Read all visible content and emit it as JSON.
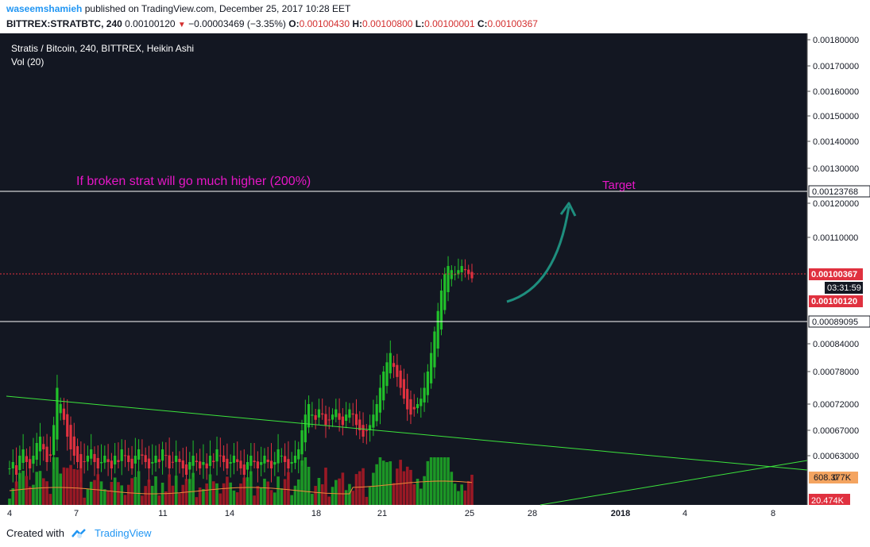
{
  "header": {
    "author": "waseemshamieh",
    "published_text": "published on TradingView.com, December 25, 2017 10:28 EET",
    "symbol": "BITTREX:STRATBTC, 240",
    "last_price": "0.00100120",
    "change": "−0.00003469 (−3.35%)",
    "o_label": "O:",
    "o_value": "0.00100430",
    "h_label": "H:",
    "h_value": "0.00100800",
    "l_label": "L:",
    "l_value": "0.00100001",
    "c_label": "C:",
    "c_value": "0.00100367"
  },
  "legend": {
    "title": "Stratis / Bitcoin, 240, BITTREX, Heikin Ashi",
    "volume": "Vol (20)"
  },
  "footer": {
    "created_with": "Created with",
    "brand": "TradingView"
  },
  "colors": {
    "background": "#131722",
    "up": "#21c02a",
    "down": "#e0313f",
    "annotation": "#e616c6",
    "arrow": "#1e8e7e",
    "trendline": "#3ce43c",
    "vol_ma": "#f08a3a"
  },
  "chart_data": {
    "type": "candlestick",
    "style": "Heikin Ashi",
    "symbol": "STRATBTC",
    "exchange": "BITTREX",
    "interval": "240",
    "ylim": [
      0.00058,
      0.00182
    ],
    "y_ticks": [
      "0.00180000",
      "0.00170000",
      "0.00160000",
      "0.00150000",
      "0.00140000",
      "0.00130000",
      "0.00120000",
      "0.00110000",
      "0.00084000",
      "0.00078000",
      "0.00072000",
      "0.00067000",
      "0.00063000"
    ],
    "x_ticks": [
      "4",
      "7",
      "11",
      "14",
      "18",
      "21",
      "25",
      "28",
      "2018",
      "4",
      "8"
    ],
    "current_price": "0.00100367",
    "countdown": "03:31:59",
    "bid_price": "0.00100120",
    "volume_label": "608.377K",
    "volume_low_label": "20.474K",
    "volume_axis_tick": "0",
    "horizontal_lines": [
      {
        "price": "0.00123768"
      },
      {
        "price": "0.00089095"
      }
    ],
    "annotations": [
      {
        "text": "If broken strat will go much higher (200%)"
      },
      {
        "text": "Target"
      }
    ],
    "candles_close": [
      0.00061,
      0.00062,
      0.0006,
      0.00063,
      0.00064,
      0.00062,
      0.00061,
      0.00063,
      0.00065,
      0.00066,
      0.00064,
      0.00062,
      0.00063,
      0.00068,
      0.00075,
      0.00072,
      0.00069,
      0.00066,
      0.00064,
      0.00063,
      0.00062,
      0.00061,
      0.00062,
      0.00063,
      0.00064,
      0.00062,
      0.00061,
      0.00062,
      0.00063,
      0.00062,
      0.00061,
      0.00063,
      0.00062,
      0.00064,
      0.00063,
      0.00062,
      0.00061,
      0.00063,
      0.00064,
      0.00063,
      0.00062,
      0.00061,
      0.00062,
      0.00063,
      0.00062,
      0.00064,
      0.00063,
      0.00061,
      0.00062,
      0.00063,
      0.00062,
      0.00061,
      0.0006,
      0.00062,
      0.00063,
      0.00062,
      0.00061,
      0.00062,
      0.00061,
      0.00063,
      0.00062,
      0.00064,
      0.00063,
      0.00062,
      0.00061,
      0.00062,
      0.00063,
      0.00062,
      0.00061,
      0.0006,
      0.00062,
      0.00063,
      0.00062,
      0.00061,
      0.00062,
      0.00063,
      0.00062,
      0.00061,
      0.00062,
      0.00064,
      0.00063,
      0.00062,
      0.00061,
      0.00062,
      0.00063,
      0.00064,
      0.00067,
      0.0007,
      0.00072,
      0.0007,
      0.00069,
      0.00071,
      0.0007,
      0.00068,
      0.00069,
      0.0007,
      0.00071,
      0.00069,
      0.00068,
      0.0007,
      0.00071,
      0.0007,
      0.00068,
      0.00067,
      0.00066,
      0.00067,
      0.00068,
      0.0007,
      0.00072,
      0.00075,
      0.00078,
      0.0008,
      0.00082,
      0.00079,
      0.00077,
      0.00075,
      0.00073,
      0.00071,
      0.0007,
      0.00071,
      0.00072,
      0.00073,
      0.00075,
      0.00078,
      0.00082,
      0.00087,
      0.00092,
      0.00097,
      0.00101,
      0.00103,
      0.00102,
      0.00101,
      0.00102,
      0.00103,
      0.00102,
      0.00101,
      0.001
    ]
  }
}
